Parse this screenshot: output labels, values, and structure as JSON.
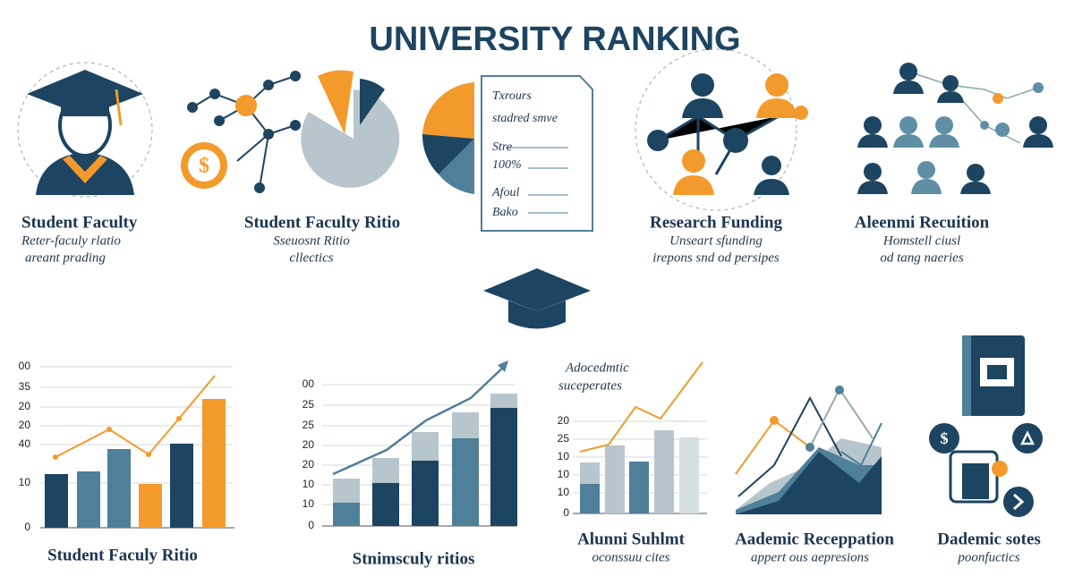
{
  "title": "UNIVERSITY RANKING",
  "top_panels": [
    {
      "heading": "Student Faculty",
      "lines": [
        "Reter-faculy rlatio",
        "areant prading"
      ]
    },
    {
      "heading": "Student Faculty Ritio",
      "lines": [
        "Sseuosnt Ritio",
        "cllectics"
      ]
    },
    {
      "document": [
        "Txrours",
        "stadred smve",
        "Stre",
        "100%",
        "Afoul",
        "Bako"
      ]
    },
    {
      "heading": "Research Funding",
      "lines": [
        "Unseart sfunding",
        "irepons snd od persipes"
      ]
    },
    {
      "heading": "Aleenmi Recuition",
      "lines": [
        "Homstell ciusl",
        "od tang naeries"
      ]
    }
  ],
  "bottom_panels": [
    {
      "axis_labels": [
        "00",
        "35",
        "20",
        "20",
        "40",
        "10",
        "0"
      ],
      "caption": "Student Faculy Ritio"
    },
    {
      "axis_labels": [
        "00",
        "25",
        "25",
        "20",
        "20",
        "10",
        "10",
        "0"
      ],
      "caption": "Stnimsculy ritios"
    },
    {
      "notes": [
        "Adocedmtic",
        "suceperates"
      ],
      "axis_labels": [
        "20",
        "25",
        "10",
        "10",
        "10",
        "0"
      ],
      "caption": "Alunni Suhlmt",
      "lines": [
        "oconssuu cites"
      ]
    },
    {
      "caption": "Aademic Receppation",
      "lines": [
        "appert ous aepresions"
      ]
    },
    {
      "caption": "Dademic sotes",
      "lines": [
        "poonfuctics"
      ]
    }
  ]
}
